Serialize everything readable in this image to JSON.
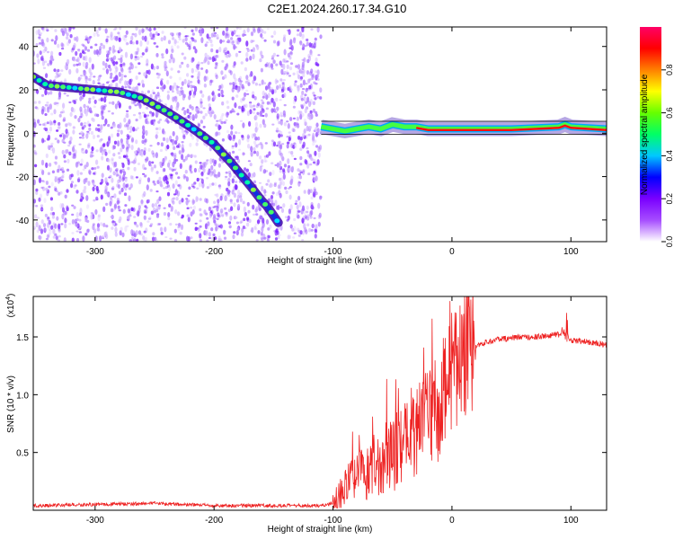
{
  "title": "C2E1.2024.260.17.34.G10",
  "chart_data": [
    {
      "type": "heatmap",
      "id": "spectrogram",
      "xlabel": "Height of straight line (km)",
      "ylabel": "Frequency (Hz)",
      "xlim": [
        -352,
        130
      ],
      "ylim": [
        -50,
        49
      ],
      "xticks": [
        -300,
        -200,
        -100,
        0,
        100
      ],
      "xtick_labels": [
        "-300",
        "-200",
        "-100",
        "0",
        "100"
      ],
      "yticks": [
        -40,
        -20,
        0,
        20,
        40
      ],
      "ytick_labels": [
        "-40",
        "-20",
        "0",
        "20",
        "40"
      ],
      "noise_region_x": [
        -352,
        -110
      ],
      "doppler_track": {
        "x": [
          -352,
          -340,
          -320,
          -300,
          -280,
          -260,
          -240,
          -220,
          -200,
          -185,
          -170,
          -160,
          -155,
          -145
        ],
        "y": [
          26,
          22,
          21,
          20,
          19,
          16,
          10,
          3,
          -5,
          -14,
          -24,
          -31,
          -34,
          -42
        ]
      },
      "carrier_line": {
        "x": [
          -110,
          -100,
          -90,
          -80,
          -70,
          -60,
          -50,
          -40,
          -30,
          -20,
          -10,
          0,
          50,
          90,
          95,
          100,
          130
        ],
        "y": [
          3,
          2,
          1,
          2,
          3,
          2,
          4,
          3,
          3,
          2,
          2,
          2,
          2,
          3,
          4,
          3,
          2
        ]
      },
      "colorbar": {
        "label": "Normalized spectral amplitude",
        "range": [
          0,
          1
        ],
        "ticks": [
          0.0,
          0.2,
          0.4,
          0.6,
          0.8
        ],
        "tick_labels": [
          "0.0",
          "0.2",
          "0.4",
          "0.6",
          "0.8"
        ],
        "colors": [
          "#ffffff",
          "#a64dff",
          "#7a00ff",
          "#0000ff",
          "#00c8ff",
          "#00ff66",
          "#66ff00",
          "#ffff00",
          "#ff8000",
          "#ff0000",
          "#ff0066"
        ]
      }
    },
    {
      "type": "line",
      "id": "snr",
      "xlabel": "Height of straight line (km)",
      "ylabel": "SNR (10 * v/v)",
      "y_multiplier": "(x10",
      "y_multiplier_exp": "4",
      "y_multiplier_close": ")",
      "xlim": [
        -352,
        130
      ],
      "ylim": [
        0,
        1.85
      ],
      "xticks": [
        -300,
        -200,
        -100,
        0,
        100
      ],
      "xtick_labels": [
        "-300",
        "-200",
        "-100",
        "0",
        "100"
      ],
      "yticks": [
        0.5,
        1.0,
        1.5
      ],
      "ytick_labels": [
        "0.5",
        "1.0",
        "1.5"
      ],
      "line_color": "#ee2222",
      "series": [
        {
          "x": [
            -352,
            -300,
            -250,
            -200,
            -150,
            -110,
            -100,
            -95,
            -90,
            -85,
            -80,
            -75,
            -70,
            -65,
            -60,
            -55,
            -50,
            -45,
            -40,
            -35,
            -30,
            -25,
            -20,
            -15,
            -10,
            -5,
            0,
            5,
            10,
            15,
            20,
            30,
            40,
            50,
            60,
            70,
            80,
            90,
            95,
            100,
            110,
            120,
            130
          ],
          "y": [
            0.04,
            0.05,
            0.06,
            0.04,
            0.04,
            0.04,
            0.06,
            0.12,
            0.2,
            0.28,
            0.3,
            0.35,
            0.3,
            0.42,
            0.38,
            0.5,
            0.45,
            0.55,
            0.6,
            0.7,
            0.65,
            0.8,
            0.75,
            0.95,
            0.85,
            1.1,
            1.2,
            1.28,
            1.35,
            1.4,
            1.42,
            1.46,
            1.48,
            1.49,
            1.5,
            1.5,
            1.51,
            1.52,
            1.55,
            1.47,
            1.46,
            1.45,
            1.43
          ]
        }
      ]
    }
  ]
}
